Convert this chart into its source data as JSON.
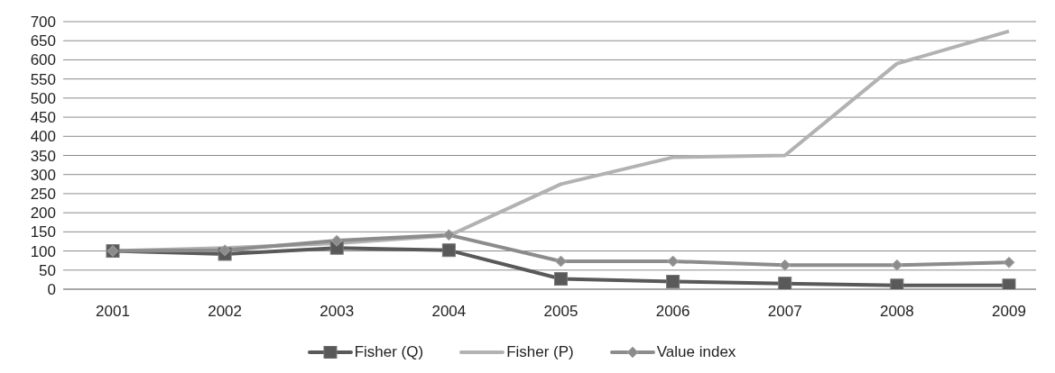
{
  "chart_data": {
    "type": "line",
    "categories": [
      "2001",
      "2002",
      "2003",
      "2004",
      "2005",
      "2006",
      "2007",
      "2008",
      "2009"
    ],
    "series": [
      {
        "name": "Fisher (Q)",
        "color": "#595959",
        "marker": "square",
        "values": [
          100,
          92,
          108,
          102,
          27,
          20,
          15,
          10,
          10
        ]
      },
      {
        "name": "Fisher (P)",
        "color": "#b2b2b2",
        "marker": "none",
        "values": [
          100,
          108,
          120,
          140,
          275,
          345,
          350,
          590,
          675
        ]
      },
      {
        "name": "Value index",
        "color": "#8c8c8c",
        "marker": "diamond",
        "values": [
          100,
          102,
          127,
          142,
          73,
          73,
          63,
          63,
          70
        ]
      }
    ],
    "ylim": [
      0,
      700
    ],
    "yticks": [
      0,
      50,
      100,
      150,
      200,
      250,
      300,
      350,
      400,
      450,
      500,
      550,
      600,
      650,
      700
    ],
    "grid": "y",
    "legend": "bottom"
  }
}
